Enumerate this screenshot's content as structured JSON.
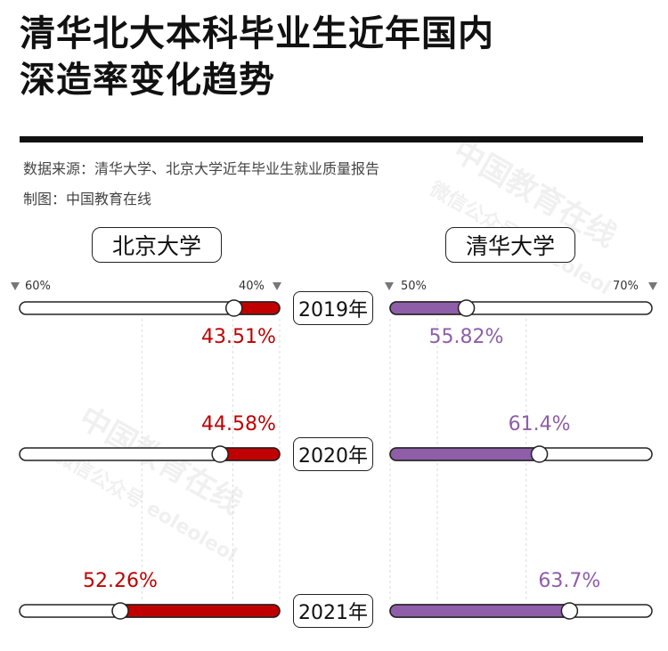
{
  "title_line1": "清华北大本科毕业生近年国内",
  "title_line2": "深造率变化趋势",
  "source": "数据来源：清华大学、北京大学近年毕业生就业质量报告",
  "credit": "制图：中国教育在线",
  "watermark_1": "中国教育在线",
  "watermark_2": "微信公众号 eoleoleol",
  "colors": {
    "pku": "#c00000",
    "thu": "#8e5ea8",
    "grid": "#dddddd"
  },
  "chart_data": {
    "type": "bar",
    "categories": [
      "2019年",
      "2020年",
      "2021年"
    ],
    "series": [
      {
        "name": "北京大学",
        "values": [
          43.51,
          44.58,
          52.26
        ],
        "labels": [
          "43.51%",
          "44.58%",
          "52.26%"
        ],
        "axis_left": "60%",
        "axis_right": "40%",
        "range": [
          40,
          60
        ],
        "direction": "right-to-left"
      },
      {
        "name": "清华大学",
        "values": [
          55.82,
          61.4,
          63.7
        ],
        "labels": [
          "55.82%",
          "61.4%",
          "63.7%"
        ],
        "axis_left": "50%",
        "axis_right": "70%",
        "range": [
          50,
          70
        ],
        "direction": "left-to-right"
      }
    ]
  }
}
